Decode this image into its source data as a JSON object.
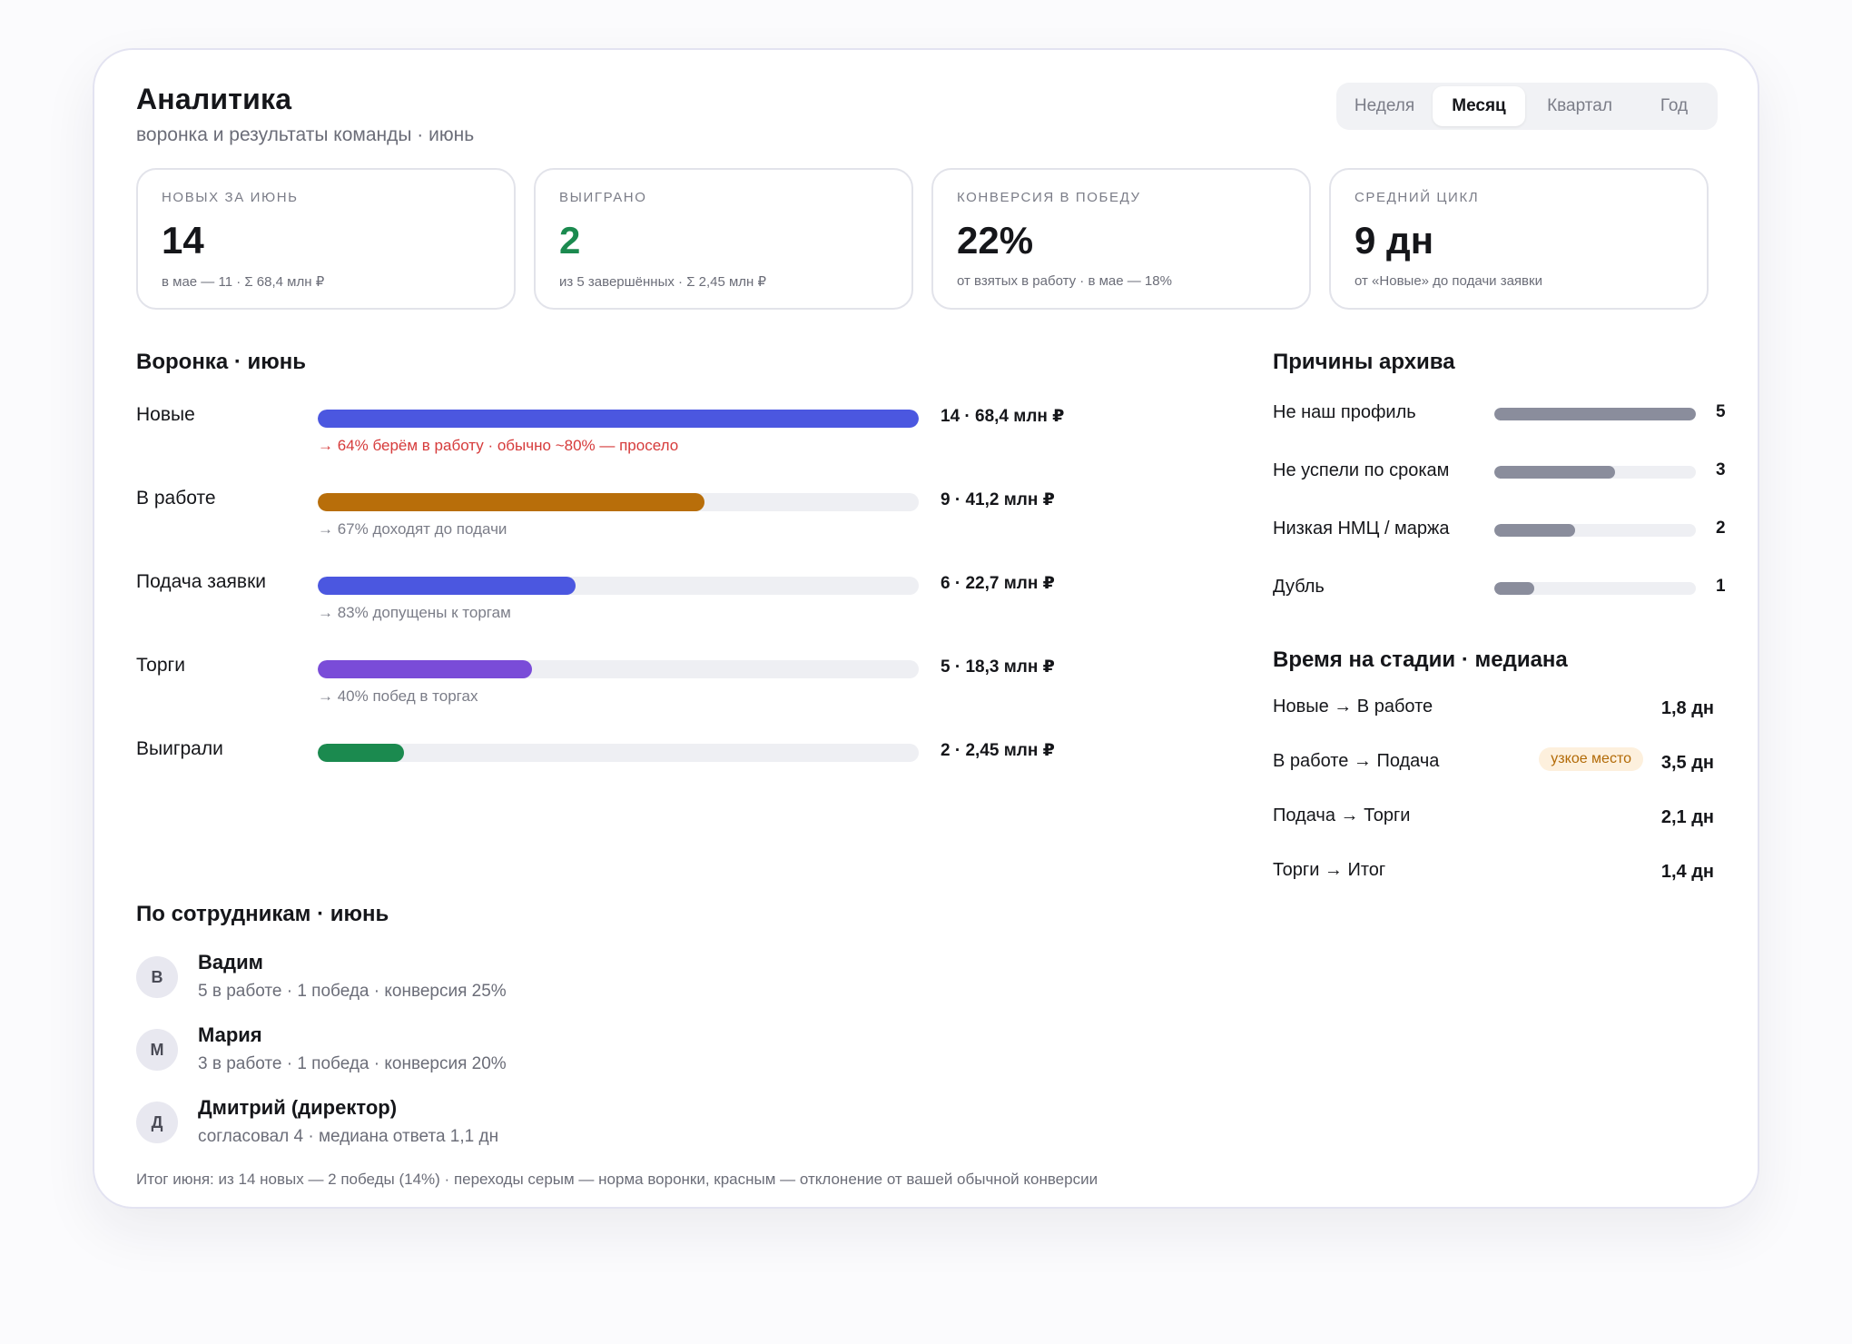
{
  "header": {
    "title": "Аналитика",
    "subtitle": "воронка и результаты команды · июнь"
  },
  "period_tabs": [
    {
      "label": "Неделя",
      "active": false
    },
    {
      "label": "Месяц",
      "active": true
    },
    {
      "label": "Квартал",
      "active": false
    },
    {
      "label": "Год",
      "active": false
    }
  ],
  "kpis": [
    {
      "label": "Новых за июнь",
      "value": "14",
      "note": "в мае — 11 · Σ 68,4 млн ₽",
      "color": "#15161a"
    },
    {
      "label": "Выиграно",
      "value": "2",
      "note": "из 5 завершённых · Σ 2,45 млн ₽",
      "color": "#1b8a4f"
    },
    {
      "label": "Конверсия в победу",
      "value": "22%",
      "note": "от взятых в работу · в мае — 18%",
      "color": "#15161a"
    },
    {
      "label": "Средний цикл",
      "value": "9 дн",
      "note": "от «Новые» до подачи заявки",
      "color": "#15161a"
    }
  ],
  "funnel": {
    "title": "Воронка · июнь",
    "stages": [
      {
        "label": "Новые",
        "count": 14,
        "value": "14 · 68,4 млн ₽",
        "color": "#4b57e0",
        "note": "→ 64% берём в работу · обычно ~80% — просело",
        "note_alert": true
      },
      {
        "label": "В работе",
        "count": 9,
        "value": "9 · 41,2 млн ₽",
        "color": "#b86e0a",
        "note": "→ 67% доходят до подачи",
        "note_alert": false
      },
      {
        "label": "Подача заявки",
        "count": 6,
        "value": "6 · 22,7 млн ₽",
        "color": "#4b57e0",
        "note": "→ 83% допущены к торгам",
        "note_alert": false
      },
      {
        "label": "Торги",
        "count": 5,
        "value": "5 · 18,3 млн ₽",
        "color": "#7a4cd8",
        "note": "→ 40% побед в торгах",
        "note_alert": false
      },
      {
        "label": "Выиграли",
        "count": 2,
        "value": "2 · 2,45 млн ₽",
        "color": "#1b8a4f",
        "note": "",
        "note_alert": false
      }
    ]
  },
  "archive": {
    "title": "Причины архива",
    "color": "#8a8d9c",
    "reasons": [
      {
        "label": "Не наш профиль",
        "value": 5
      },
      {
        "label": "Не успели по срокам",
        "value": 3
      },
      {
        "label": "Низкая НМЦ / маржа",
        "value": 2
      },
      {
        "label": "Дубль",
        "value": 1
      }
    ]
  },
  "stage_time": {
    "title": "Время на стадии · медиана",
    "rows": [
      {
        "label": "Новые → В работе",
        "value": "1,8 дн",
        "badge": ""
      },
      {
        "label": "В работе → Подача",
        "value": "3,5 дн",
        "badge": "узкое место"
      },
      {
        "label": "Подача → Торги",
        "value": "2,1 дн",
        "badge": ""
      },
      {
        "label": "Торги → Итог",
        "value": "1,4 дн",
        "badge": ""
      }
    ]
  },
  "people": {
    "title": "По сотрудникам · июнь",
    "items": [
      {
        "initial": "В",
        "name": "Вадим",
        "meta": "5 в работе · 1 победа · конверсия 25%"
      },
      {
        "initial": "М",
        "name": "Мария",
        "meta": "3 в работе · 1 победа · конверсия 20%"
      },
      {
        "initial": "Д",
        "name": "Дмитрий (директор)",
        "meta": "согласовал 4 · медиана ответа 1,1 дн"
      }
    ]
  },
  "footer": "Итог июня: из 14 новых — 2 победы (14%) · переходы серым — норма воронки, красным — отклонение от вашей обычной конверсии"
}
